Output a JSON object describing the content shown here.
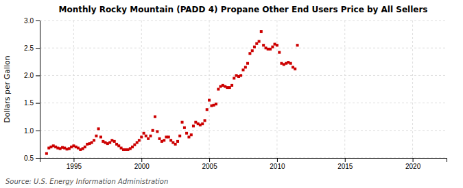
{
  "chart_data": {
    "type": "scatter",
    "title": "Monthly Rocky Mountain (PADD 4) Propane Other End Users Price by All Sellers",
    "ylabel": "Dollars per Gallon",
    "annotations": [
      "Source: U.S. Energy Information Administration"
    ],
    "color": "#cc0000",
    "marker": "square",
    "grid": true,
    "xlim": [
      1992.5,
      2022.5
    ],
    "ylim": [
      0.5,
      3.0
    ],
    "xticks": [
      1995,
      2000,
      2005,
      2010,
      2015,
      2020
    ],
    "yticks": [
      0.5,
      {
        "value": 1.0,
        "label": "1.0"
      },
      1.5,
      {
        "value": 2.0,
        "label": "2.0"
      },
      2.5,
      {
        "value": 3.0,
        "label": "3.0"
      }
    ],
    "x": [
      1993.0,
      1993.17,
      1993.33,
      1993.5,
      1993.67,
      1993.83,
      1994.0,
      1994.17,
      1994.33,
      1994.5,
      1994.67,
      1994.83,
      1995.0,
      1995.17,
      1995.33,
      1995.5,
      1995.67,
      1995.83,
      1996.0,
      1996.17,
      1996.33,
      1996.5,
      1996.67,
      1996.83,
      1997.0,
      1997.17,
      1997.33,
      1997.5,
      1997.67,
      1997.83,
      1998.0,
      1998.17,
      1998.33,
      1998.5,
      1998.67,
      1998.83,
      1999.0,
      1999.17,
      1999.33,
      1999.5,
      1999.67,
      1999.83,
      2000.0,
      2000.17,
      2000.33,
      2000.5,
      2000.67,
      2000.83,
      2001.0,
      2001.17,
      2001.33,
      2001.5,
      2001.67,
      2001.83,
      2002.0,
      2002.17,
      2002.33,
      2002.5,
      2002.67,
      2002.83,
      2003.0,
      2003.17,
      2003.33,
      2003.5,
      2003.67,
      2003.83,
      2004.0,
      2004.17,
      2004.33,
      2004.5,
      2004.67,
      2004.83,
      2005.0,
      2005.17,
      2005.33,
      2005.5,
      2005.67,
      2005.83,
      2006.0,
      2006.17,
      2006.33,
      2006.5,
      2006.67,
      2006.83,
      2007.0,
      2007.17,
      2007.33,
      2007.5,
      2007.67,
      2007.83,
      2008.0,
      2008.17,
      2008.33,
      2008.5,
      2008.67,
      2008.83,
      2009.0,
      2009.17,
      2009.33,
      2009.5,
      2009.67,
      2009.83,
      2010.0,
      2010.17,
      2010.33,
      2010.5,
      2010.67,
      2010.83,
      2011.0,
      2011.17,
      2011.33,
      2011.5
    ],
    "values": [
      0.58,
      0.68,
      0.7,
      0.72,
      0.7,
      0.68,
      0.67,
      0.69,
      0.68,
      0.66,
      0.67,
      0.7,
      0.72,
      0.7,
      0.68,
      0.65,
      0.67,
      0.7,
      0.75,
      0.76,
      0.78,
      0.82,
      0.9,
      1.03,
      0.88,
      0.8,
      0.78,
      0.76,
      0.78,
      0.82,
      0.8,
      0.75,
      0.72,
      0.68,
      0.65,
      0.65,
      0.65,
      0.67,
      0.7,
      0.74,
      0.78,
      0.82,
      0.88,
      0.95,
      0.9,
      0.85,
      0.9,
      1.0,
      1.25,
      0.98,
      0.85,
      0.8,
      0.82,
      0.88,
      0.88,
      0.82,
      0.78,
      0.75,
      0.8,
      0.9,
      1.15,
      1.05,
      0.95,
      0.88,
      0.92,
      1.08,
      1.15,
      1.12,
      1.1,
      1.12,
      1.18,
      1.38,
      1.55,
      1.45,
      1.46,
      1.48,
      1.75,
      1.8,
      1.82,
      1.8,
      1.78,
      1.78,
      1.82,
      1.95,
      2.0,
      1.98,
      2.0,
      2.1,
      2.15,
      2.22,
      2.4,
      2.45,
      2.52,
      2.58,
      2.62,
      2.8,
      2.55,
      2.5,
      2.48,
      2.48,
      2.52,
      2.57,
      2.55,
      2.42,
      2.22,
      2.2,
      2.22,
      2.24,
      2.22,
      2.15,
      2.12,
      2.55
    ]
  }
}
